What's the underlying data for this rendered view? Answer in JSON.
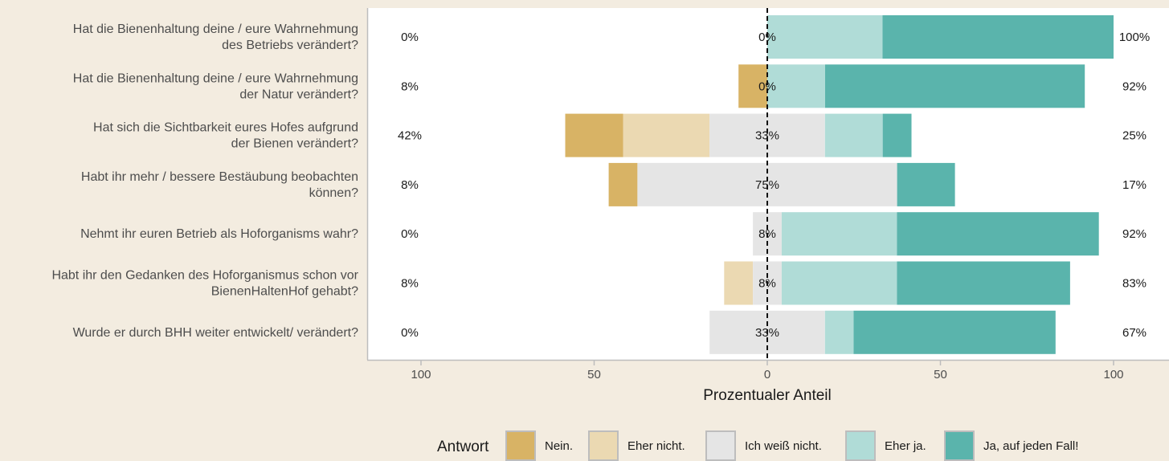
{
  "chart_data": {
    "type": "bar",
    "orientation": "horizontal",
    "stacking": "diverging",
    "xlabel": "Prozentualer Anteil",
    "x_ticks": [
      "100",
      "50",
      "0",
      "50",
      "100"
    ],
    "xlim": [
      -100,
      100
    ],
    "legend_title": "Antwort",
    "legend_position": "bottom",
    "grid": false,
    "colors": {
      "Nein.": "#d8b365",
      "Eher nicht.": "#ebd9b2",
      "Ich weiß nicht.": "#e5e5e5",
      "Eher ja.": "#b0dcd7",
      "Ja, auf jeden Fall!": "#5ab4ac"
    },
    "series": [
      {
        "name": "Nein.",
        "values": [
          0,
          8.3,
          16.7,
          8.3,
          0,
          0,
          0
        ]
      },
      {
        "name": "Eher nicht.",
        "values": [
          0,
          0,
          25,
          0,
          0,
          8.3,
          0
        ]
      },
      {
        "name": "Ich weiß nicht.",
        "values": [
          0,
          0,
          33.3,
          75,
          8.3,
          8.3,
          33.3
        ]
      },
      {
        "name": "Eher ja.",
        "values": [
          33.3,
          16.7,
          16.7,
          0,
          33.3,
          33.3,
          8.3
        ]
      },
      {
        "name": "Ja, auf jeden Fall!",
        "values": [
          66.7,
          75,
          8.3,
          16.7,
          58.3,
          50,
          58.3
        ]
      }
    ],
    "questions": [
      {
        "label_lines": [
          "Hat die Bienenhaltung deine / eure Wahrnehmung",
          "des Betriebs verändert?"
        ],
        "left": "0%",
        "center": "0%",
        "right": "100%"
      },
      {
        "label_lines": [
          "Hat die Bienenhaltung deine / eure Wahrnehmung",
          "der Natur verändert?"
        ],
        "left": "8%",
        "center": "0%",
        "right": "92%"
      },
      {
        "label_lines": [
          "Hat sich die Sichtbarkeit eures Hofes aufgrund",
          "der Bienen verändert?"
        ],
        "left": "42%",
        "center": "33%",
        "right": "25%"
      },
      {
        "label_lines": [
          "Habt ihr mehr / bessere Bestäubung beobachten",
          "können?"
        ],
        "left": "8%",
        "center": "75%",
        "right": "17%"
      },
      {
        "label_lines": [
          "Nehmt ihr euren Betrieb als Hoforganisms wahr?"
        ],
        "left": "0%",
        "center": "8%",
        "right": "92%"
      },
      {
        "label_lines": [
          "Habt ihr den Gedanken des Hoforganismus schon vor",
          "BienenHaltenHof gehabt?"
        ],
        "left": "8%",
        "center": "8%",
        "right": "83%"
      },
      {
        "label_lines": [
          "Wurde er durch BHH weiter entwickelt/ verändert?"
        ],
        "left": "0%",
        "center": "33%",
        "right": "67%"
      }
    ]
  }
}
